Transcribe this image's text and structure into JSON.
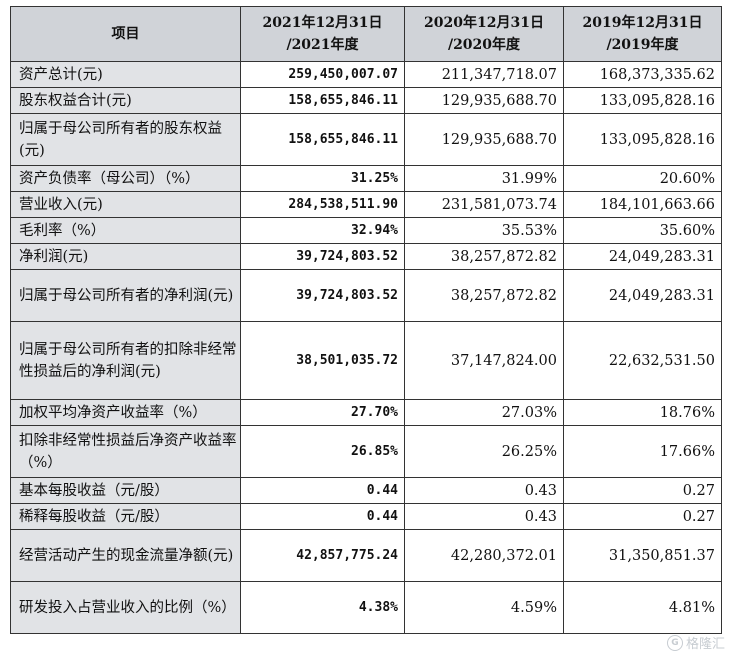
{
  "table": {
    "headers": {
      "item": "项目",
      "y2021": [
        "2021年12月31日",
        "/2021年度"
      ],
      "y2020": [
        "2020年12月31日",
        "/2020年度"
      ],
      "y2019": [
        "2019年12月31日",
        "/2019年度"
      ]
    },
    "rows": [
      {
        "label": "资产总计(元)",
        "v2021": "259,450,007.07",
        "v2020": "211,347,718.07",
        "v2019": "168,373,335.62"
      },
      {
        "label": "股东权益合计(元)",
        "v2021": "158,655,846.11",
        "v2020": "129,935,688.70",
        "v2019": "133,095,828.16"
      },
      {
        "label": "归属于母公司所有者的股东权益(元)",
        "v2021": "158,655,846.11",
        "v2020": "129,935,688.70",
        "v2019": "133,095,828.16"
      },
      {
        "label": "资产负债率（母公司）（%）",
        "v2021": "31.25%",
        "v2020": "31.99%",
        "v2019": "20.60%"
      },
      {
        "label": "营业收入(元)",
        "v2021": "284,538,511.90",
        "v2020": "231,581,073.74",
        "v2019": "184,101,663.66"
      },
      {
        "label": "毛利率（%）",
        "v2021": "32.94%",
        "v2020": "35.53%",
        "v2019": "35.60%"
      },
      {
        "label": "净利润(元)",
        "v2021": "39,724,803.52",
        "v2020": "38,257,872.82",
        "v2019": "24,049,283.31"
      },
      {
        "label": "归属于母公司所有者的净利润(元)",
        "v2021": "39,724,803.52",
        "v2020": "38,257,872.82",
        "v2019": "24,049,283.31"
      },
      {
        "label": "归属于母公司所有者的扣除非经常性损益后的净利润(元)",
        "v2021": "38,501,035.72",
        "v2020": "37,147,824.00",
        "v2019": "22,632,531.50"
      },
      {
        "label": "加权平均净资产收益率（%）",
        "v2021": "27.70%",
        "v2020": "27.03%",
        "v2019": "18.76%"
      },
      {
        "label": "扣除非经常性损益后净资产收益率（%）",
        "v2021": "26.85%",
        "v2020": "26.25%",
        "v2019": "17.66%"
      },
      {
        "label": "基本每股收益（元/股）",
        "v2021": "0.44",
        "v2020": "0.43",
        "v2019": "0.27"
      },
      {
        "label": "稀释每股收益（元/股）",
        "v2021": "0.44",
        "v2020": "0.43",
        "v2019": "0.27"
      },
      {
        "label": "经营活动产生的现金流量净额(元)",
        "v2021": "42,857,775.24",
        "v2020": "42,280,372.01",
        "v2019": "31,350,851.37"
      },
      {
        "label": "研发投入占营业收入的比例（%）",
        "v2021": "4.38%",
        "v2020": "4.59%",
        "v2019": "4.81%"
      }
    ]
  },
  "watermark": {
    "text": "格隆汇",
    "logo": "G"
  }
}
